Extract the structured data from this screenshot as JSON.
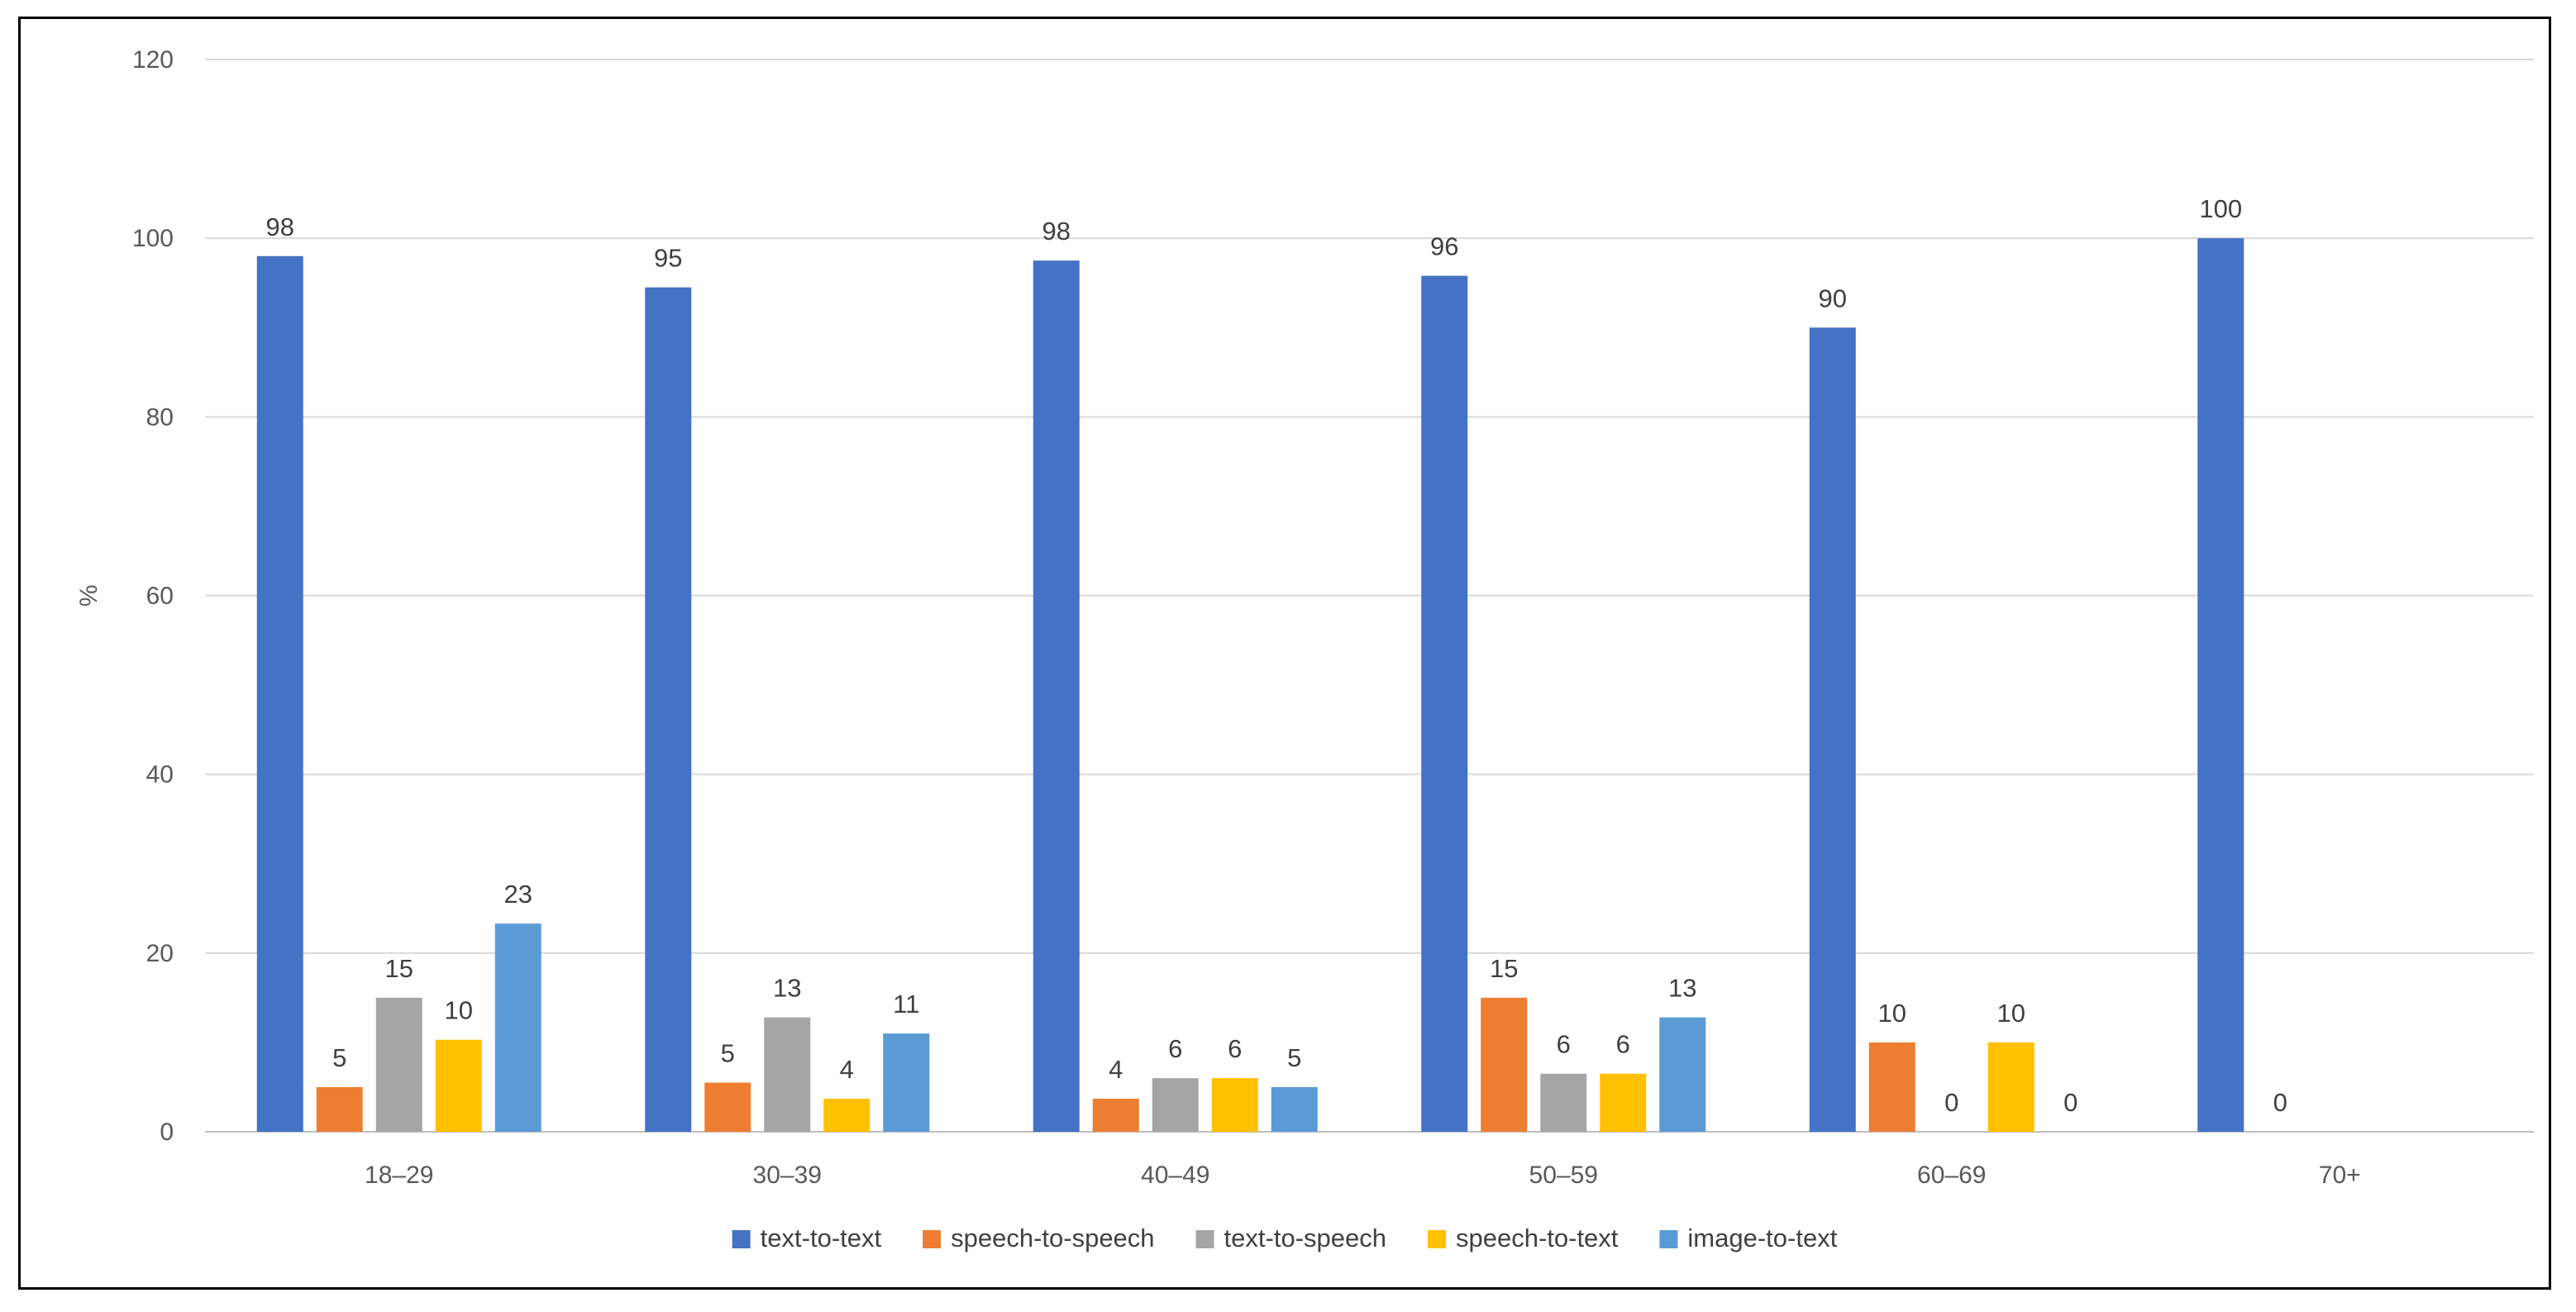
{
  "chart_data": {
    "type": "bar",
    "title": "",
    "xlabel": "",
    "ylabel": "%",
    "ylim": [
      0,
      120
    ],
    "yticks": [
      "0",
      "20",
      "40",
      "60",
      "80",
      "100",
      "120"
    ],
    "grid": true,
    "legend_position": "bottom",
    "categories": [
      "18–29",
      "30–39",
      "40–49",
      "50–59",
      "60–69",
      "70+"
    ],
    "series": [
      {
        "name": "text-to-text",
        "color": "#4472C4",
        "values": [
          98,
          94.5,
          97.5,
          95.8,
          90,
          100
        ],
        "labels": [
          "98",
          "95",
          "98",
          "96",
          "90",
          "100"
        ]
      },
      {
        "name": "speech-to-speech",
        "color": "#ED7D31",
        "values": [
          5,
          5.5,
          3.7,
          15,
          10,
          0
        ],
        "labels": [
          "5",
          "5",
          "4",
          "15",
          "10",
          "0"
        ]
      },
      {
        "name": "text-to-speech",
        "color": "#A5A5A5",
        "values": [
          15,
          12.8,
          6,
          6.5,
          0,
          null
        ],
        "labels": [
          "15",
          "13",
          "6",
          "6",
          "0",
          ""
        ]
      },
      {
        "name": "speech-to-text",
        "color": "#FFC000",
        "values": [
          10.3,
          3.7,
          6,
          6.5,
          10,
          null
        ],
        "labels": [
          "10",
          "4",
          "6",
          "6",
          "10",
          ""
        ]
      },
      {
        "name": "image-to-text",
        "color": "#5B9BD5",
        "values": [
          23.3,
          11,
          5,
          12.8,
          0,
          null
        ],
        "labels": [
          "23",
          "11",
          "5",
          "13",
          "0",
          ""
        ]
      }
    ]
  }
}
